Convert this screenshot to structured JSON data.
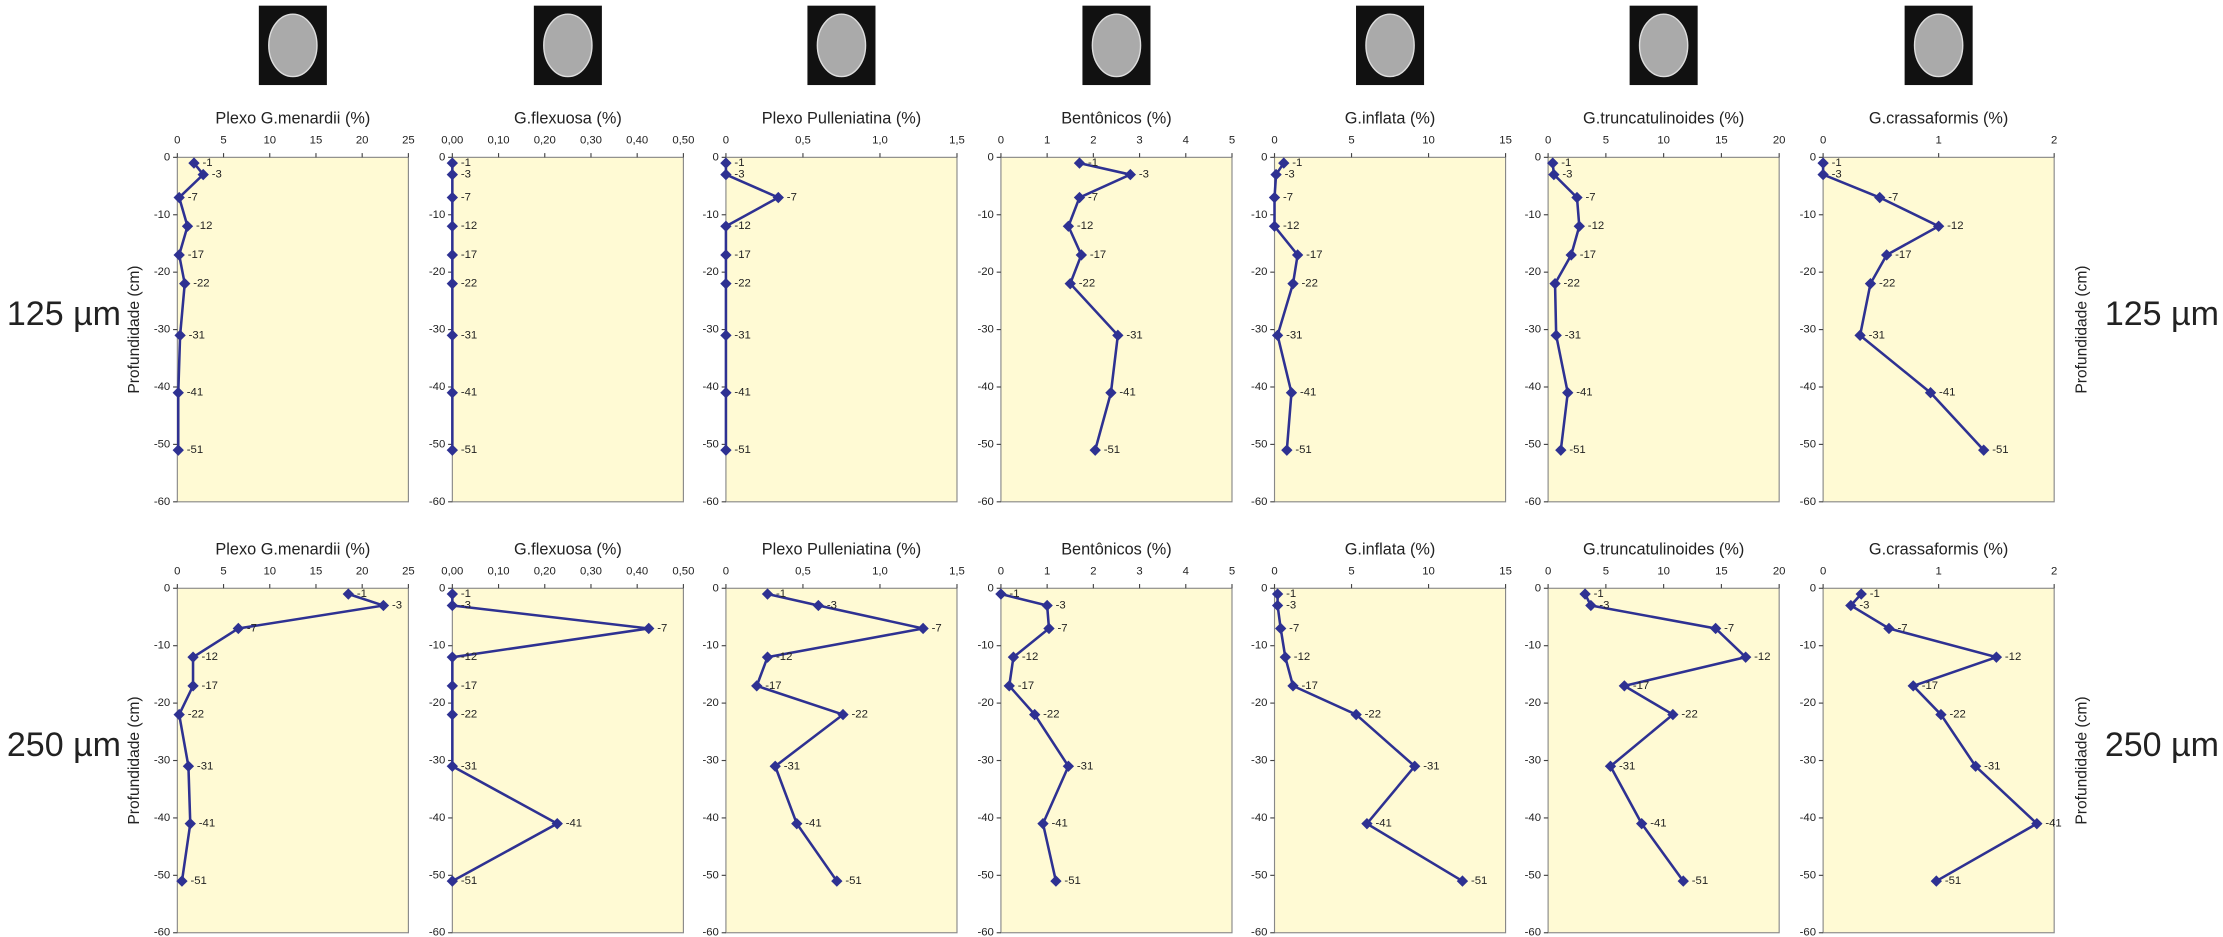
{
  "row_labels": [
    "125 µm",
    "250 µm"
  ],
  "chart_data": [
    {
      "type": "line",
      "title": "Plexo G.menardii (%)",
      "ylabel": "Profundidade (cm)",
      "color": "#2e3192",
      "x": [
        1.8,
        2.8,
        0.2,
        1.1,
        0.2,
        0.8,
        0.3,
        0.1,
        0.1
      ],
      "y": [
        -1,
        -3,
        -7,
        -12,
        -17,
        -22,
        -31,
        -41,
        -51
      ],
      "xlim": [
        0,
        25
      ],
      "xticks": [
        0,
        5,
        10,
        15,
        20,
        25
      ],
      "ylim": [
        -60,
        0
      ],
      "yticks": [
        0,
        -10,
        -20,
        -30,
        -40,
        -50,
        -60
      ]
    },
    {
      "type": "line",
      "title": "G.flexuosa (%)",
      "color": "#2e3192",
      "x": [
        0,
        0,
        0,
        0,
        0,
        0,
        0,
        0,
        0
      ],
      "y": [
        -1,
        -3,
        -7,
        -12,
        -17,
        -22,
        -31,
        -41,
        -51
      ],
      "xlim": [
        0,
        0.5
      ],
      "xticks": [
        {
          "value": 0,
          "label": "0,00"
        },
        {
          "value": 0.1,
          "label": "0,10"
        },
        {
          "value": 0.2,
          "label": "0,20"
        },
        {
          "value": 0.3,
          "label": "0,30"
        },
        {
          "value": 0.4,
          "label": "0,40"
        },
        {
          "value": 0.5,
          "label": "0,50"
        }
      ],
      "ylim": [
        -60,
        0
      ],
      "yticks": [
        0,
        -10,
        -20,
        -30,
        -40,
        -50,
        -60
      ]
    },
    {
      "type": "line",
      "title": "Plexo Pulleniatina (%)",
      "color": "#2e3192",
      "x": [
        0,
        0,
        0.34,
        0,
        0,
        0,
        0,
        0,
        0
      ],
      "y": [
        -1,
        -3,
        -7,
        -12,
        -17,
        -22,
        -31,
        -41,
        -51
      ],
      "xlim": [
        0,
        1.5
      ],
      "xticks": [
        0,
        {
          "value": 0.5,
          "label": "0,5"
        },
        {
          "value": 1,
          "label": "1,0"
        },
        {
          "value": 1.5,
          "label": "1,5"
        }
      ],
      "ylim": [
        -60,
        0
      ],
      "yticks": [
        0,
        -10,
        -20,
        -30,
        -40,
        -50,
        -60
      ]
    },
    {
      "type": "line",
      "title": "Bentônicos (%)",
      "color": "#2e3192",
      "x": [
        1.7,
        2.8,
        1.7,
        1.46,
        1.74,
        1.5,
        2.53,
        2.38,
        2.04
      ],
      "y": [
        -1,
        -3,
        -7,
        -12,
        -17,
        -22,
        -31,
        -41,
        -51
      ],
      "xlim": [
        0,
        5
      ],
      "xticks": [
        0,
        1,
        2,
        3,
        4,
        5
      ],
      "ylim": [
        -60,
        0
      ],
      "yticks": [
        0,
        -10,
        -20,
        -30,
        -40,
        -50,
        -60
      ]
    },
    {
      "type": "line",
      "title": "G.inflata (%)",
      "color": "#2e3192",
      "x": [
        0.6,
        0.1,
        0,
        0,
        1.5,
        1.2,
        0.2,
        1.1,
        0.8
      ],
      "y": [
        -1,
        -3,
        -7,
        -12,
        -17,
        -22,
        -31,
        -41,
        -51
      ],
      "xlim": [
        0,
        15
      ],
      "xticks": [
        0,
        5,
        10,
        15
      ],
      "ylim": [
        -60,
        0
      ],
      "yticks": [
        0,
        -10,
        -20,
        -30,
        -40,
        -50,
        -60
      ]
    },
    {
      "type": "line",
      "title": "G.truncatulinoides (%)",
      "color": "#2e3192",
      "x": [
        0.4,
        0.5,
        2.5,
        2.7,
        2,
        0.6,
        0.7,
        1.7,
        1.1
      ],
      "y": [
        -1,
        -3,
        -7,
        -12,
        -17,
        -22,
        -31,
        -41,
        -51
      ],
      "xlim": [
        0,
        20
      ],
      "xticks": [
        0,
        5,
        10,
        15,
        20
      ],
      "ylim": [
        -60,
        0
      ],
      "yticks": [
        0,
        -10,
        -20,
        -30,
        -40,
        -50,
        -60
      ]
    },
    {
      "type": "line",
      "title": "G.crassaformis (%)",
      "ylabel": "Profundidade (cm)",
      "color": "#2e3192",
      "x": [
        0,
        0,
        0.49,
        1.0,
        0.55,
        0.41,
        0.32,
        0.93,
        1.39
      ],
      "y": [
        -1,
        -3,
        -7,
        -12,
        -17,
        -22,
        -31,
        -41,
        -51
      ],
      "xlim": [
        0,
        2
      ],
      "xticks": [
        0,
        1,
        2
      ],
      "ylim": [
        -60,
        0
      ],
      "yticks": [
        0,
        -10,
        -20,
        -30,
        -40,
        -50,
        -60
      ]
    },
    {
      "type": "line",
      "title": "Plexo G.menardii (%)",
      "ylabel": "Profundidade (cm)",
      "color": "#2e3192",
      "x": [
        18.5,
        22.3,
        6.6,
        1.7,
        1.7,
        0.2,
        1.2,
        1.4,
        0.5
      ],
      "y": [
        -1,
        -3,
        -7,
        -12,
        -17,
        -22,
        -31,
        -41,
        -51
      ],
      "xlim": [
        0,
        25
      ],
      "xticks": [
        0,
        5,
        10,
        15,
        20,
        25
      ],
      "ylim": [
        -60,
        0
      ],
      "yticks": [
        0,
        -10,
        -20,
        -30,
        -40,
        -50,
        -60
      ]
    },
    {
      "type": "line",
      "title": "G.flexuosa (%)",
      "color": "#2e3192",
      "x": [
        0,
        0,
        0.425,
        0,
        0,
        0,
        0,
        0.227,
        0
      ],
      "y": [
        -1,
        -3,
        -7,
        -12,
        -17,
        -22,
        -31,
        -41,
        -51
      ],
      "xlim": [
        0,
        0.5
      ],
      "xticks": [
        {
          "value": 0,
          "label": "0,00"
        },
        {
          "value": 0.1,
          "label": "0,10"
        },
        {
          "value": 0.2,
          "label": "0,20"
        },
        {
          "value": 0.3,
          "label": "0,30"
        },
        {
          "value": 0.4,
          "label": "0,40"
        },
        {
          "value": 0.5,
          "label": "0,50"
        }
      ],
      "ylim": [
        -60,
        0
      ],
      "yticks": [
        0,
        -10,
        -20,
        -30,
        -40,
        -50,
        -60
      ]
    },
    {
      "type": "line",
      "title": "Plexo Pulleniatina (%)",
      "color": "#2e3192",
      "x": [
        0.27,
        0.6,
        1.28,
        0.27,
        0.2,
        0.76,
        0.32,
        0.46,
        0.72
      ],
      "y": [
        -1,
        -3,
        -7,
        -12,
        -17,
        -22,
        -31,
        -41,
        -51
      ],
      "xlim": [
        0,
        1.5
      ],
      "xticks": [
        0,
        {
          "value": 0.5,
          "label": "0,5"
        },
        {
          "value": 1,
          "label": "1,0"
        },
        {
          "value": 1.5,
          "label": "1,5"
        }
      ],
      "ylim": [
        -60,
        0
      ],
      "yticks": [
        0,
        -10,
        -20,
        -30,
        -40,
        -50,
        -60
      ]
    },
    {
      "type": "line",
      "title": "Bentônicos (%)",
      "color": "#2e3192",
      "x": [
        0,
        1.0,
        1.04,
        0.27,
        0.18,
        0.73,
        1.46,
        0.91,
        1.19
      ],
      "y": [
        -1,
        -3,
        -7,
        -12,
        -17,
        -22,
        -31,
        -41,
        -51
      ],
      "xlim": [
        0,
        5
      ],
      "xticks": [
        0,
        1,
        2,
        3,
        4,
        5
      ],
      "ylim": [
        -60,
        0
      ],
      "yticks": [
        0,
        -10,
        -20,
        -30,
        -40,
        -50,
        -60
      ]
    },
    {
      "type": "line",
      "title": "G.inflata (%)",
      "color": "#2e3192",
      "x": [
        0.2,
        0.2,
        0.4,
        0.7,
        1.2,
        5.3,
        9.1,
        6.0,
        12.2
      ],
      "y": [
        -1,
        -3,
        -7,
        -12,
        -17,
        -22,
        -31,
        -41,
        -51
      ],
      "xlim": [
        0,
        15
      ],
      "xticks": [
        0,
        5,
        10,
        15
      ],
      "ylim": [
        -60,
        0
      ],
      "yticks": [
        0,
        -10,
        -20,
        -30,
        -40,
        -50,
        -60
      ]
    },
    {
      "type": "line",
      "title": "G.truncatulinoides (%)",
      "color": "#2e3192",
      "x": [
        3.2,
        3.7,
        14.5,
        17.1,
        6.6,
        10.8,
        5.4,
        8.1,
        11.7
      ],
      "y": [
        -1,
        -3,
        -7,
        -12,
        -17,
        -22,
        -31,
        -41,
        -51
      ],
      "xlim": [
        0,
        20
      ],
      "xticks": [
        0,
        5,
        10,
        15,
        20
      ],
      "ylim": [
        -60,
        0
      ],
      "yticks": [
        0,
        -10,
        -20,
        -30,
        -40,
        -50,
        -60
      ]
    },
    {
      "type": "line",
      "title": "G.crassaformis (%)",
      "ylabel": "Profundidade (cm)",
      "color": "#2e3192",
      "x": [
        0.33,
        0.24,
        0.57,
        1.5,
        0.78,
        1.02,
        1.32,
        1.85,
        0.98
      ],
      "y": [
        -1,
        -3,
        -7,
        -12,
        -17,
        -22,
        -31,
        -41,
        -51
      ],
      "xlim": [
        0,
        2
      ],
      "xticks": [
        0,
        1,
        2
      ],
      "ylim": [
        -60,
        0
      ],
      "yticks": [
        0,
        -10,
        -20,
        -30,
        -40,
        -50,
        -60
      ]
    }
  ]
}
